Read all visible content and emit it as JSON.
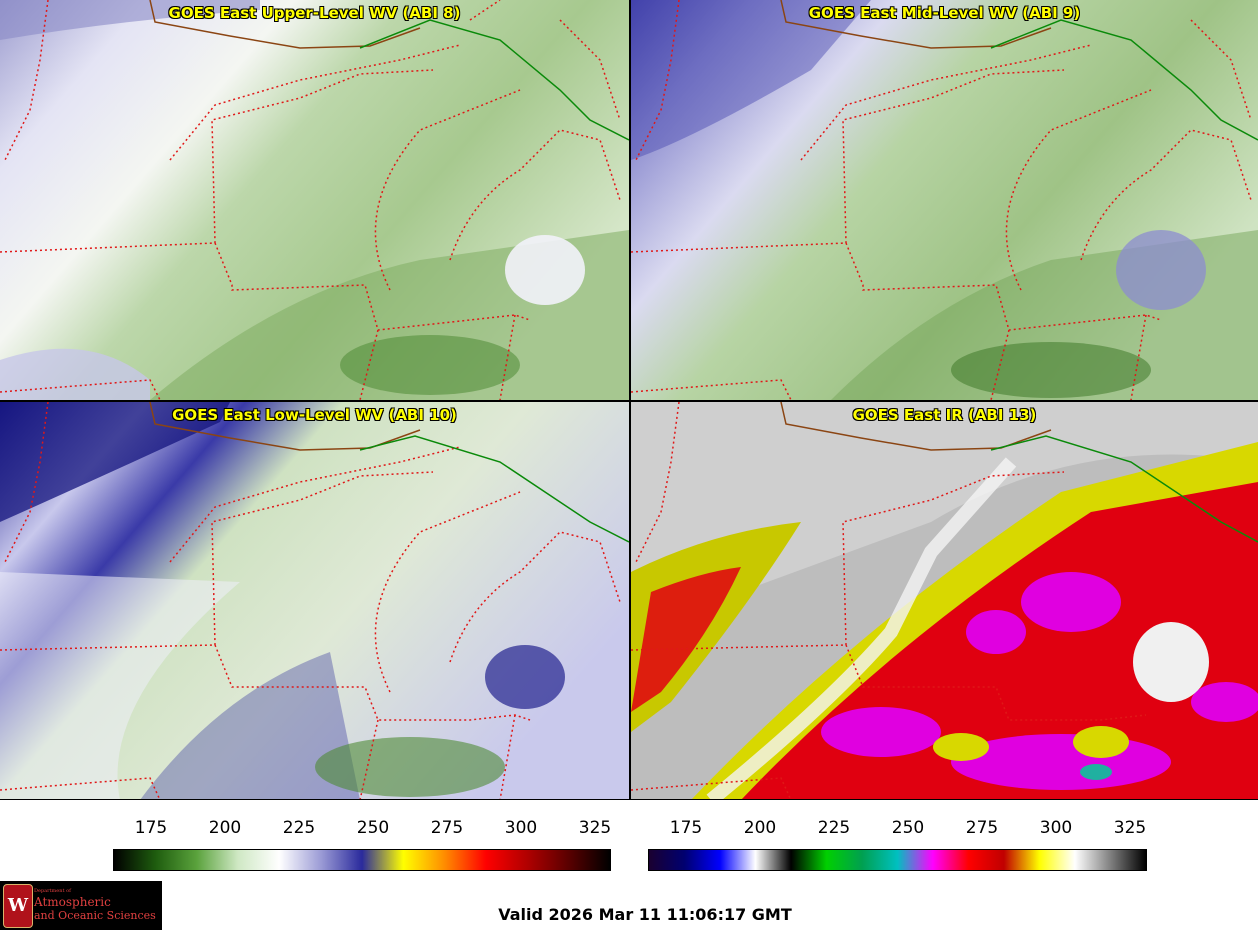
{
  "panels": [
    {
      "title": "GOES East Upper-Level WV (ABI 8)",
      "palette": "wv",
      "variant": "upper"
    },
    {
      "title": "GOES East Mid-Level WV (ABI 9)",
      "palette": "wv",
      "variant": "mid"
    },
    {
      "title": "GOES East Low-Level WV (ABI 10)",
      "palette": "wv",
      "variant": "low"
    },
    {
      "title": "GOES East IR (ABI 13)",
      "palette": "ir",
      "variant": "ir"
    }
  ],
  "colorbars": {
    "wv": {
      "ticks": [
        "175",
        "200",
        "225",
        "250",
        "275",
        "300",
        "325"
      ],
      "colors": [
        "#000000",
        "#1e5c0e",
        "#5aa23c",
        "#cfe8c4",
        "#ffffff",
        "#9c9cd6",
        "#2a2a9c",
        "#ffff00",
        "#ff8c00",
        "#ff0000",
        "#b00000",
        "#5a0000",
        "#000000"
      ]
    },
    "ir": {
      "ticks": [
        "175",
        "200",
        "225",
        "250",
        "275",
        "300",
        "325"
      ],
      "colors": [
        "#1a0030",
        "#000070",
        "#0000ff",
        "#ffffff",
        "#000000",
        "#00d000",
        "#00a050",
        "#00c0c0",
        "#ff00ff",
        "#ff0000",
        "#c00000",
        "#ffff00",
        "#ffffff",
        "#808080",
        "#000000"
      ]
    }
  },
  "logo": {
    "line1": "Department of",
    "line2": "Atmospheric",
    "line3": "and Oceanic Sciences"
  },
  "valid_time": "Valid 2026 Mar 11 11:06:17 GMT"
}
